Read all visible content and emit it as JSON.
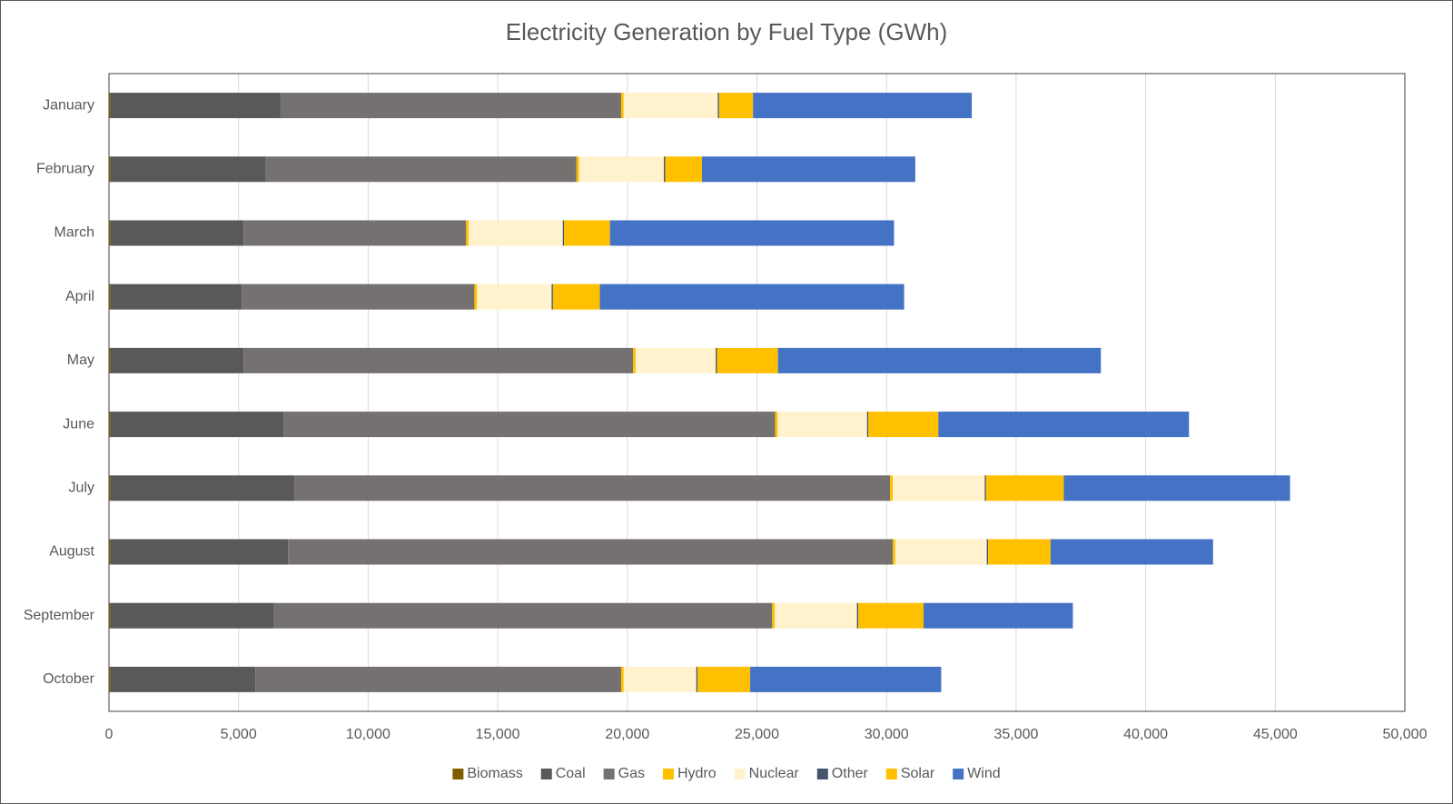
{
  "chart_data": {
    "type": "stacked-bar-horizontal",
    "title": "Electricity Generation by Fuel Type (GWh)",
    "categories": [
      "January",
      "February",
      "March",
      "April",
      "May",
      "June",
      "July",
      "August",
      "September",
      "October"
    ],
    "series": [
      {
        "name": "Biomass",
        "color": "#7f6000",
        "values": [
          50,
          50,
          50,
          50,
          50,
          50,
          50,
          50,
          50,
          50
        ]
      },
      {
        "name": "Coal",
        "color": "#595959",
        "values": [
          6570,
          6000,
          5140,
          5070,
          5140,
          6680,
          7110,
          6860,
          6320,
          5600
        ]
      },
      {
        "name": "Gas",
        "color": "#767171",
        "values": [
          13140,
          11990,
          8590,
          8980,
          15030,
          18970,
          22980,
          23330,
          19220,
          14110
        ]
      },
      {
        "name": "Hydro",
        "color": "#ffc000",
        "values": [
          100,
          100,
          100,
          100,
          100,
          100,
          100,
          100,
          100,
          100
        ]
      },
      {
        "name": "Nuclear",
        "color": "#fff2cc",
        "values": [
          3630,
          3270,
          3630,
          2880,
          3090,
          3450,
          3550,
          3530,
          3170,
          2800
        ]
      },
      {
        "name": "Other",
        "color": "#44546a",
        "values": [
          50,
          50,
          50,
          50,
          50,
          50,
          50,
          50,
          50,
          50
        ]
      },
      {
        "name": "Solar",
        "color": "#ffc000",
        "values": [
          1310,
          1420,
          1770,
          1810,
          2350,
          2700,
          3000,
          2410,
          2520,
          2030
        ]
      },
      {
        "name": "Wind",
        "color": "#4472c4",
        "values": [
          8440,
          8230,
          10960,
          11740,
          12460,
          9670,
          8730,
          6270,
          5760,
          7370
        ]
      }
    ],
    "xlim": [
      0,
      50000
    ],
    "xticks": [
      0,
      {
        "value": 5000,
        "label": "5,000"
      },
      {
        "value": 10000,
        "label": "10,000"
      },
      {
        "value": 15000,
        "label": "15,000"
      },
      {
        "value": 20000,
        "label": "20,000"
      },
      {
        "value": 25000,
        "label": "25,000"
      },
      {
        "value": 30000,
        "label": "30,000"
      },
      {
        "value": 35000,
        "label": "35,000"
      },
      {
        "value": 40000,
        "label": "40,000"
      },
      {
        "value": 45000,
        "label": "45,000"
      },
      {
        "value": 50000,
        "label": "50,000"
      }
    ],
    "grid": true,
    "legend": "bottom"
  }
}
